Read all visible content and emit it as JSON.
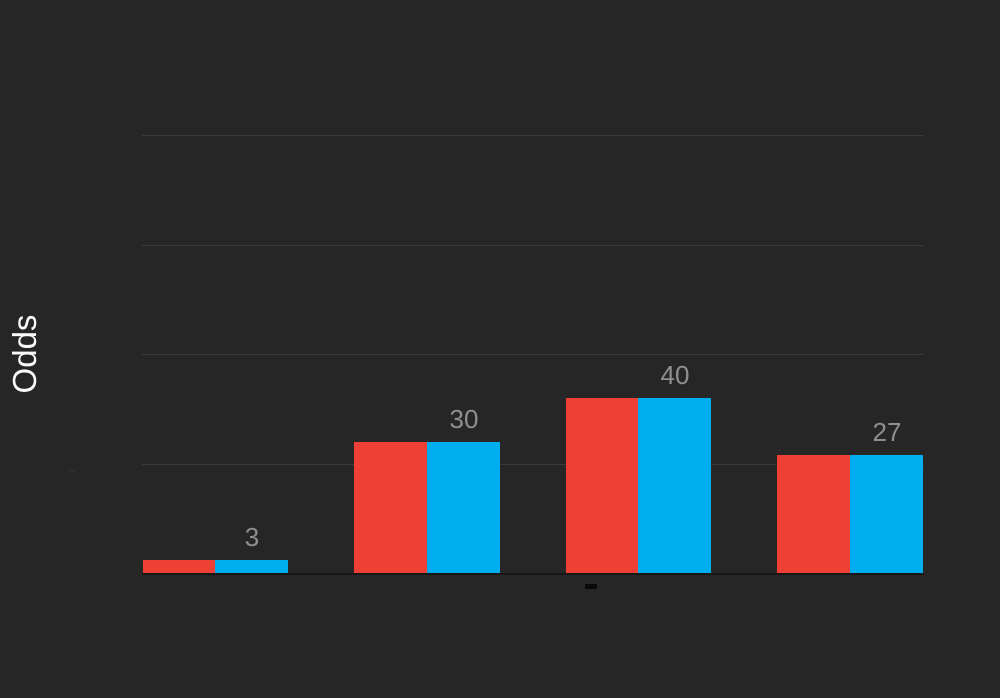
{
  "chart_data": {
    "type": "bar",
    "title": "",
    "xlabel": "",
    "ylabel": "Odds",
    "ylim": [
      0,
      100
    ],
    "gridlines": [
      25,
      50,
      75,
      100
    ],
    "grid": true,
    "legend": false,
    "categories": [
      "",
      "",
      "",
      ""
    ],
    "series": [
      {
        "name": "red-series",
        "color": "#ee4035",
        "values": [
          3,
          30,
          40,
          27
        ]
      },
      {
        "name": "blue-series",
        "color": "#00aeef",
        "values": [
          3,
          30,
          40,
          27
        ]
      }
    ],
    "data_labels": [
      "3",
      "30",
      "40",
      "27"
    ],
    "background": "#262626",
    "label_color": "#8f8f8f",
    "gridline_color": "#3a3a3a",
    "axis_line_color": "#161616",
    "y_title_color": "#fafafa"
  },
  "marks": {
    "x_axis_dash": "-",
    "y_axis_faint_tick": "-"
  }
}
